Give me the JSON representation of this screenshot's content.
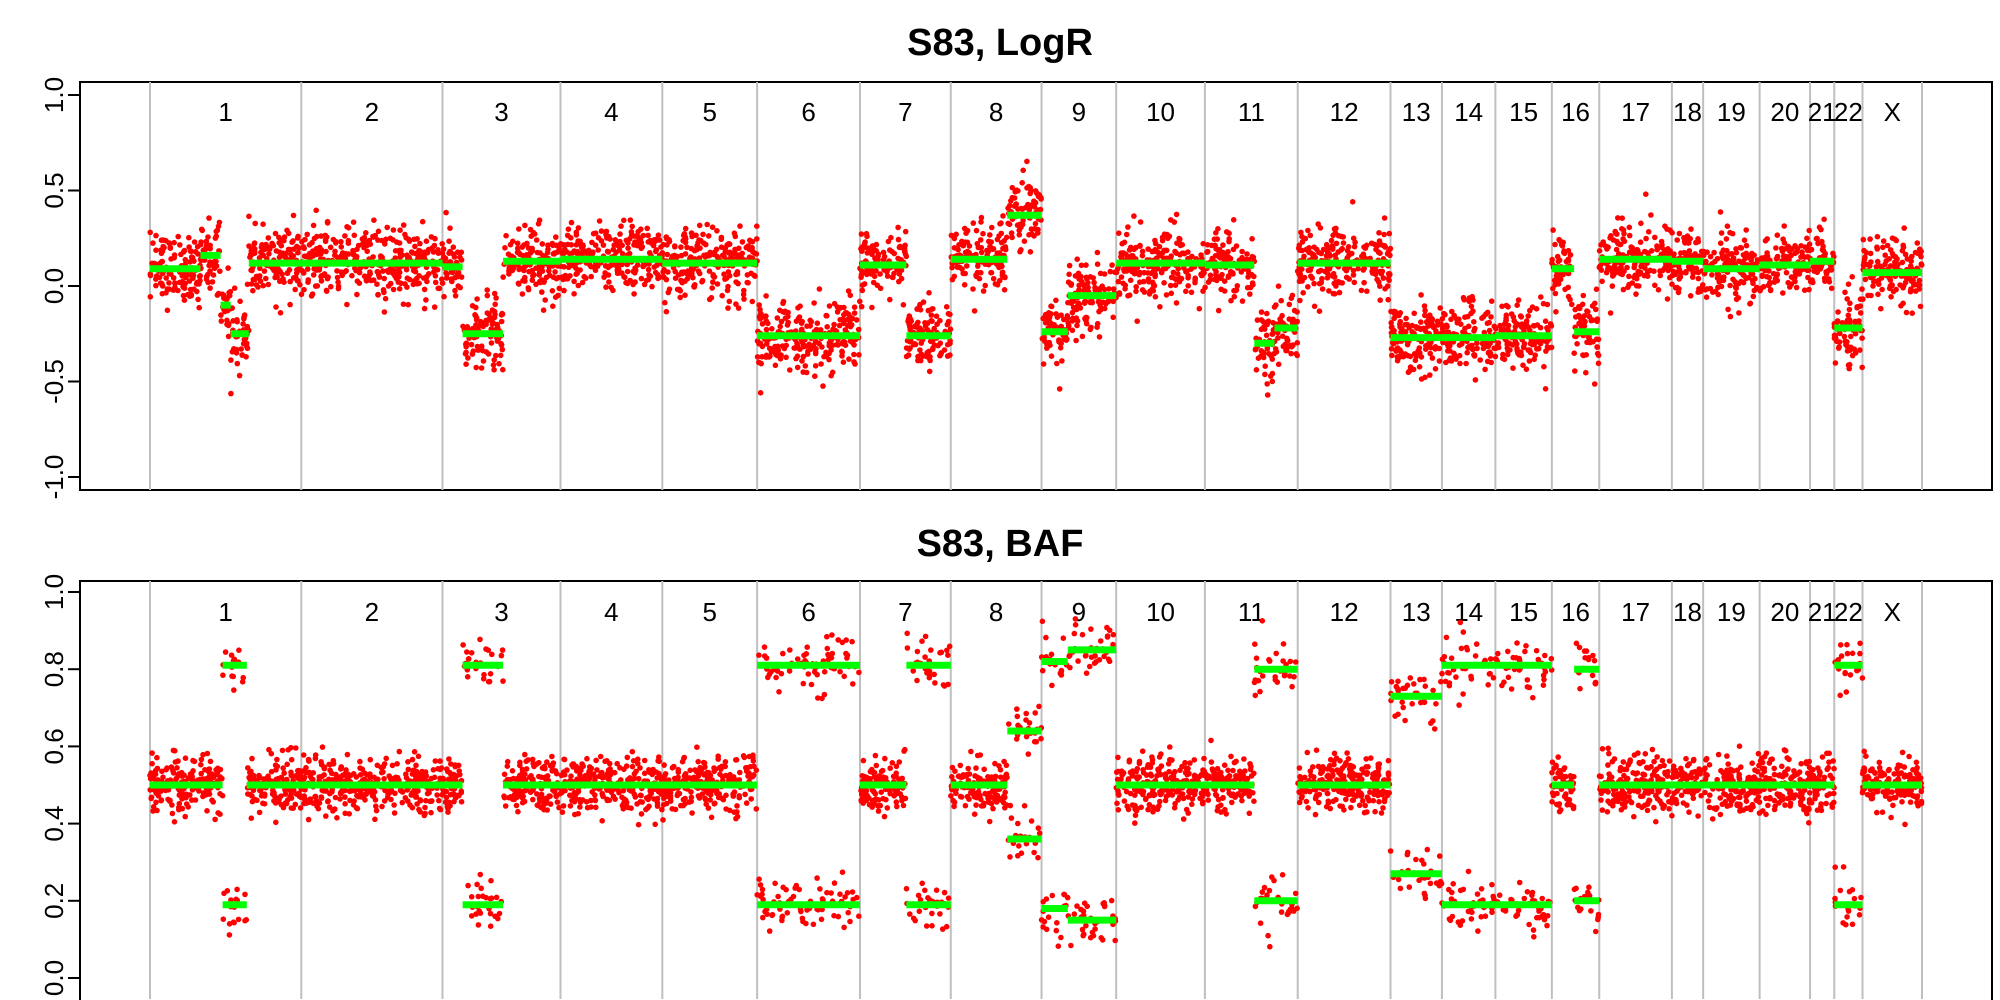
{
  "panels": [
    {
      "title": "S83, LogR",
      "ylim": [
        -1.0,
        1.0
      ],
      "yticks": [
        "-1.0",
        "-0.5",
        "0.0",
        "0.5",
        "1.0"
      ],
      "ytick_values": [
        -1.0,
        -0.5,
        0.0,
        0.5,
        1.0
      ]
    },
    {
      "title": "S83, BAF",
      "ylim": [
        0.0,
        1.0
      ],
      "yticks": [
        "0.0",
        "0.2",
        "0.4",
        "0.6",
        "0.8",
        "1.0"
      ],
      "ytick_values": [
        0.0,
        0.2,
        0.4,
        0.6,
        0.8,
        1.0
      ]
    }
  ],
  "colors": {
    "points": "#ff0000",
    "segments": "#00ff00",
    "separators": "#bfbfbf",
    "axis": "#000000",
    "background": "#ffffff"
  },
  "chart_data": [
    {
      "type": "scatter",
      "title": "S83, LogR",
      "ylabel": "",
      "xlabel": "",
      "ylim": [
        -1.0,
        1.0
      ],
      "grid": false,
      "chromosomes": [
        "1",
        "2",
        "3",
        "4",
        "5",
        "6",
        "7",
        "8",
        "9",
        "10",
        "11",
        "12",
        "13",
        "14",
        "15",
        "16",
        "17",
        "18",
        "19",
        "20",
        "21",
        "22",
        "X"
      ],
      "chromosome_boundaries": [
        0,
        150,
        290,
        407,
        508,
        602,
        704,
        794,
        884,
        958,
        1046,
        1138,
        1230,
        1281,
        1334,
        1390,
        1437,
        1509,
        1540,
        1596,
        1646,
        1670,
        1698,
        1757
      ],
      "noise_sd": 0.09,
      "segments": [
        {
          "chr": "1",
          "start": 0,
          "end": 50,
          "value": 0.09
        },
        {
          "chr": "1",
          "start": 50,
          "end": 70,
          "value": 0.16
        },
        {
          "chr": "1",
          "start": 70,
          "end": 80,
          "value": -0.1
        },
        {
          "chr": "1",
          "start": 80,
          "end": 98,
          "value": -0.25
        },
        {
          "chr": "1",
          "start": 98,
          "end": 150,
          "value": 0.12
        },
        {
          "chr": "2",
          "start": 150,
          "end": 290,
          "value": 0.12
        },
        {
          "chr": "3",
          "start": 290,
          "end": 310,
          "value": 0.1
        },
        {
          "chr": "3",
          "start": 310,
          "end": 350,
          "value": -0.25
        },
        {
          "chr": "3",
          "start": 350,
          "end": 407,
          "value": 0.13
        },
        {
          "chr": "4",
          "start": 407,
          "end": 508,
          "value": 0.14
        },
        {
          "chr": "5",
          "start": 508,
          "end": 602,
          "value": 0.12
        },
        {
          "chr": "6",
          "start": 602,
          "end": 704,
          "value": -0.26
        },
        {
          "chr": "7",
          "start": 704,
          "end": 750,
          "value": 0.11
        },
        {
          "chr": "7",
          "start": 750,
          "end": 794,
          "value": -0.26
        },
        {
          "chr": "8",
          "start": 794,
          "end": 850,
          "value": 0.14
        },
        {
          "chr": "8",
          "start": 850,
          "end": 884,
          "value": 0.37
        },
        {
          "chr": "9",
          "start": 884,
          "end": 910,
          "value": -0.24
        },
        {
          "chr": "9",
          "start": 910,
          "end": 958,
          "value": -0.05
        },
        {
          "chr": "10",
          "start": 958,
          "end": 1046,
          "value": 0.12
        },
        {
          "chr": "11",
          "start": 1046,
          "end": 1095,
          "value": 0.11
        },
        {
          "chr": "11",
          "start": 1095,
          "end": 1115,
          "value": -0.3
        },
        {
          "chr": "11",
          "start": 1115,
          "end": 1138,
          "value": -0.22
        },
        {
          "chr": "12",
          "start": 1138,
          "end": 1230,
          "value": 0.12
        },
        {
          "chr": "13",
          "start": 1230,
          "end": 1281,
          "value": -0.27
        },
        {
          "chr": "14",
          "start": 1281,
          "end": 1334,
          "value": -0.27
        },
        {
          "chr": "15",
          "start": 1334,
          "end": 1390,
          "value": -0.26
        },
        {
          "chr": "16",
          "start": 1390,
          "end": 1412,
          "value": 0.09
        },
        {
          "chr": "16",
          "start": 1412,
          "end": 1437,
          "value": -0.24
        },
        {
          "chr": "17",
          "start": 1437,
          "end": 1509,
          "value": 0.14
        },
        {
          "chr": "18",
          "start": 1509,
          "end": 1540,
          "value": 0.13
        },
        {
          "chr": "19",
          "start": 1540,
          "end": 1596,
          "value": 0.09
        },
        {
          "chr": "20",
          "start": 1596,
          "end": 1646,
          "value": 0.11
        },
        {
          "chr": "21",
          "start": 1646,
          "end": 1670,
          "value": 0.13
        },
        {
          "chr": "22",
          "start": 1670,
          "end": 1698,
          "value": -0.22
        },
        {
          "chr": "X",
          "start": 1698,
          "end": 1757,
          "value": 0.07
        }
      ]
    },
    {
      "type": "scatter",
      "title": "S83, BAF",
      "ylabel": "",
      "xlabel": "",
      "ylim": [
        0.0,
        1.0
      ],
      "grid": false,
      "chromosomes": [
        "1",
        "2",
        "3",
        "4",
        "5",
        "6",
        "7",
        "8",
        "9",
        "10",
        "11",
        "12",
        "13",
        "14",
        "15",
        "16",
        "17",
        "18",
        "19",
        "20",
        "21",
        "22",
        "X"
      ],
      "chromosome_boundaries": [
        0,
        150,
        290,
        407,
        508,
        602,
        704,
        794,
        884,
        958,
        1046,
        1138,
        1230,
        1281,
        1334,
        1390,
        1437,
        1509,
        1540,
        1596,
        1646,
        1670,
        1698,
        1757
      ],
      "noise_sd": 0.035,
      "segments": [
        {
          "chr": "1",
          "start": 0,
          "end": 72,
          "values": [
            0.5
          ]
        },
        {
          "chr": "1",
          "start": 72,
          "end": 96,
          "values": [
            0.81,
            0.19
          ]
        },
        {
          "chr": "1",
          "start": 96,
          "end": 150,
          "values": [
            0.5
          ]
        },
        {
          "chr": "2",
          "start": 150,
          "end": 290,
          "values": [
            0.5
          ]
        },
        {
          "chr": "3",
          "start": 290,
          "end": 310,
          "values": [
            0.5
          ]
        },
        {
          "chr": "3",
          "start": 310,
          "end": 350,
          "values": [
            0.81,
            0.19
          ]
        },
        {
          "chr": "3",
          "start": 350,
          "end": 407,
          "values": [
            0.5
          ]
        },
        {
          "chr": "4",
          "start": 407,
          "end": 508,
          "values": [
            0.5
          ]
        },
        {
          "chr": "5",
          "start": 508,
          "end": 602,
          "values": [
            0.5
          ]
        },
        {
          "chr": "6",
          "start": 602,
          "end": 704,
          "values": [
            0.81,
            0.19
          ]
        },
        {
          "chr": "7",
          "start": 704,
          "end": 750,
          "values": [
            0.5
          ]
        },
        {
          "chr": "7",
          "start": 750,
          "end": 794,
          "values": [
            0.81,
            0.19
          ]
        },
        {
          "chr": "8",
          "start": 794,
          "end": 850,
          "values": [
            0.5
          ]
        },
        {
          "chr": "8",
          "start": 850,
          "end": 884,
          "values": [
            0.64,
            0.36
          ]
        },
        {
          "chr": "9",
          "start": 884,
          "end": 910,
          "values": [
            0.82,
            0.18
          ]
        },
        {
          "chr": "9",
          "start": 910,
          "end": 958,
          "values": [
            0.85,
            0.15
          ]
        },
        {
          "chr": "10",
          "start": 958,
          "end": 1046,
          "values": [
            0.5
          ]
        },
        {
          "chr": "11",
          "start": 1046,
          "end": 1095,
          "values": [
            0.5
          ]
        },
        {
          "chr": "11",
          "start": 1095,
          "end": 1138,
          "values": [
            0.8,
            0.2
          ]
        },
        {
          "chr": "12",
          "start": 1138,
          "end": 1230,
          "values": [
            0.5
          ]
        },
        {
          "chr": "13",
          "start": 1230,
          "end": 1281,
          "values": [
            0.73,
            0.27
          ]
        },
        {
          "chr": "14",
          "start": 1281,
          "end": 1334,
          "values": [
            0.81,
            0.19
          ]
        },
        {
          "chr": "15",
          "start": 1334,
          "end": 1390,
          "values": [
            0.81,
            0.19
          ]
        },
        {
          "chr": "16",
          "start": 1390,
          "end": 1412,
          "values": [
            0.5
          ]
        },
        {
          "chr": "16",
          "start": 1412,
          "end": 1437,
          "values": [
            0.8,
            0.2
          ]
        },
        {
          "chr": "17",
          "start": 1437,
          "end": 1509,
          "values": [
            0.5
          ]
        },
        {
          "chr": "18",
          "start": 1509,
          "end": 1540,
          "values": [
            0.5
          ]
        },
        {
          "chr": "19",
          "start": 1540,
          "end": 1596,
          "values": [
            0.5
          ]
        },
        {
          "chr": "20",
          "start": 1596,
          "end": 1646,
          "values": [
            0.5
          ]
        },
        {
          "chr": "21",
          "start": 1646,
          "end": 1670,
          "values": [
            0.5
          ]
        },
        {
          "chr": "22",
          "start": 1670,
          "end": 1698,
          "values": [
            0.81,
            0.19
          ]
        },
        {
          "chr": "X",
          "start": 1698,
          "end": 1757,
          "values": [
            0.5
          ]
        }
      ]
    }
  ]
}
